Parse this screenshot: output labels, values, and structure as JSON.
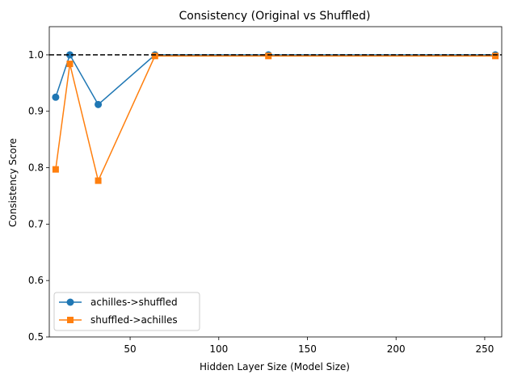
{
  "chart_data": {
    "type": "line",
    "title": "Consistency (Original vs Shuffled)",
    "xlabel": "Hidden Layer Size (Model Size)",
    "ylabel": "Consistency Score",
    "xlim": [
      4.4,
      259.6
    ],
    "ylim": [
      0.5,
      1.05
    ],
    "xticks": [
      50,
      100,
      150,
      200,
      250
    ],
    "yticks": [
      0.5,
      0.6,
      0.7,
      0.8,
      0.9,
      1.0
    ],
    "ytick_labels": [
      "0.5",
      "0.6",
      "0.7",
      "0.8",
      "0.9",
      "1.0"
    ],
    "reference_line": {
      "y": 1.0,
      "style": "dashed",
      "color": "#000000"
    },
    "grid": false,
    "legend_position": "lower-left",
    "series": [
      {
        "name": "achilles->shuffled",
        "color": "#1f77b4",
        "marker": "circle",
        "x": [
          8,
          16,
          32,
          64,
          128,
          256
        ],
        "y": [
          0.925,
          1.0,
          0.912,
          1.0,
          1.0,
          1.0
        ]
      },
      {
        "name": "shuffled->achilles",
        "color": "#ff7f0e",
        "marker": "square",
        "x": [
          8,
          16,
          32,
          64,
          128,
          256
        ],
        "y": [
          0.797,
          0.984,
          0.777,
          0.998,
          0.998,
          0.998
        ]
      }
    ]
  }
}
